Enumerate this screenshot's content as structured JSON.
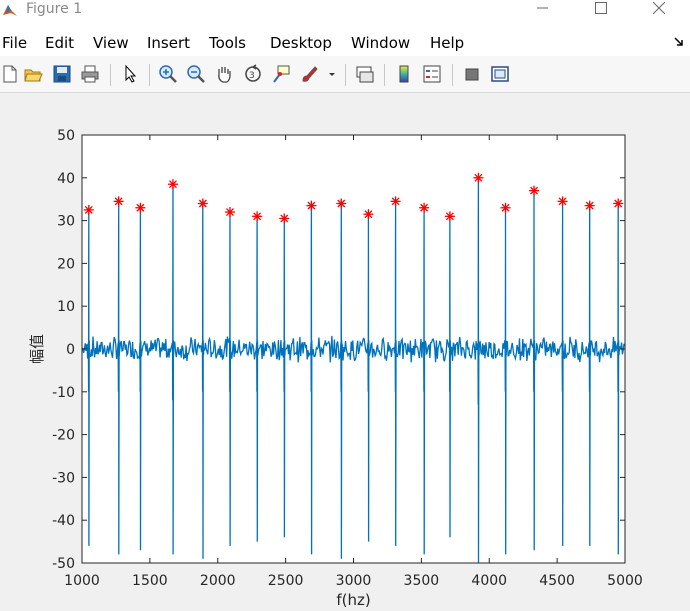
{
  "window": {
    "title": "Figure 1"
  },
  "menu": [
    "File",
    "Edit",
    "View",
    "Insert",
    "Tools",
    "Desktop",
    "Window",
    "Help"
  ],
  "toolbar_icons": [
    "new-figure-icon",
    "open-file-icon",
    "save-icon",
    "print-icon",
    "pointer-icon",
    "zoom-in-icon",
    "zoom-out-icon",
    "pan-hand-icon",
    "rotate-3d-icon",
    "data-cursor-icon",
    "brush-icon",
    "brush-dropdown-icon",
    "link-plot-icon",
    "colorbar-icon",
    "legend-icon",
    "hide-plot-tools-icon",
    "show-plot-tools-icon"
  ],
  "colors": {
    "line": "#0072bd",
    "marker": "#ff0000",
    "axes_bg": "#ffffff",
    "figure_bg": "#f0f0f0"
  },
  "chart_data": {
    "type": "line",
    "title": "",
    "xlabel": "f(hz)",
    "ylabel": "幅值",
    "xlim": [
      1000,
      5000
    ],
    "ylim": [
      -50,
      50
    ],
    "xticks": [
      1000,
      1500,
      2000,
      2500,
      3000,
      3500,
      4000,
      4500,
      5000
    ],
    "yticks": [
      -50,
      -40,
      -30,
      -20,
      -10,
      0,
      10,
      20,
      30,
      40,
      50
    ],
    "grid": false,
    "series": [
      {
        "style": "line",
        "description_values": "impulse-like oscillations around 0 with sharp spikes",
        "peak_x": [
          1050,
          1270,
          1430,
          1670,
          1890,
          2090,
          2290,
          2490,
          2690,
          2910,
          3110,
          3310,
          3520,
          3710,
          3920,
          4120,
          4330,
          4540,
          4740,
          4950
        ],
        "peak_y": [
          32,
          34,
          33,
          38,
          34,
          32,
          31,
          30,
          33,
          34,
          32,
          34,
          33,
          31,
          40,
          33,
          37,
          34,
          34,
          34
        ],
        "trough_y": [
          -46,
          -48,
          -47,
          -48,
          -49,
          -46,
          -45,
          -44,
          -48,
          -49,
          -45,
          -46,
          -48,
          -44,
          -50,
          -48,
          -47,
          -46,
          -46,
          -48
        ],
        "negative_dip_y": [
          -10,
          -10,
          -10,
          -12,
          -10,
          -10,
          -10,
          -10,
          -10,
          -10,
          -10,
          -10,
          -10,
          -10,
          -13,
          -10,
          -10,
          -10,
          -10,
          -10
        ]
      },
      {
        "style": "marker",
        "marker": "*",
        "x": [
          1050,
          1270,
          1430,
          1670,
          1890,
          2090,
          2290,
          2490,
          2690,
          2910,
          3110,
          3310,
          3520,
          3710,
          3920,
          4120,
          4330,
          4540,
          4740,
          4950
        ],
        "y": [
          32.5,
          34.5,
          33,
          38.5,
          34,
          32,
          31,
          30.5,
          33.5,
          34,
          31.5,
          34.5,
          33,
          31,
          40,
          33,
          37,
          34.5,
          33.5,
          34
        ]
      }
    ]
  }
}
